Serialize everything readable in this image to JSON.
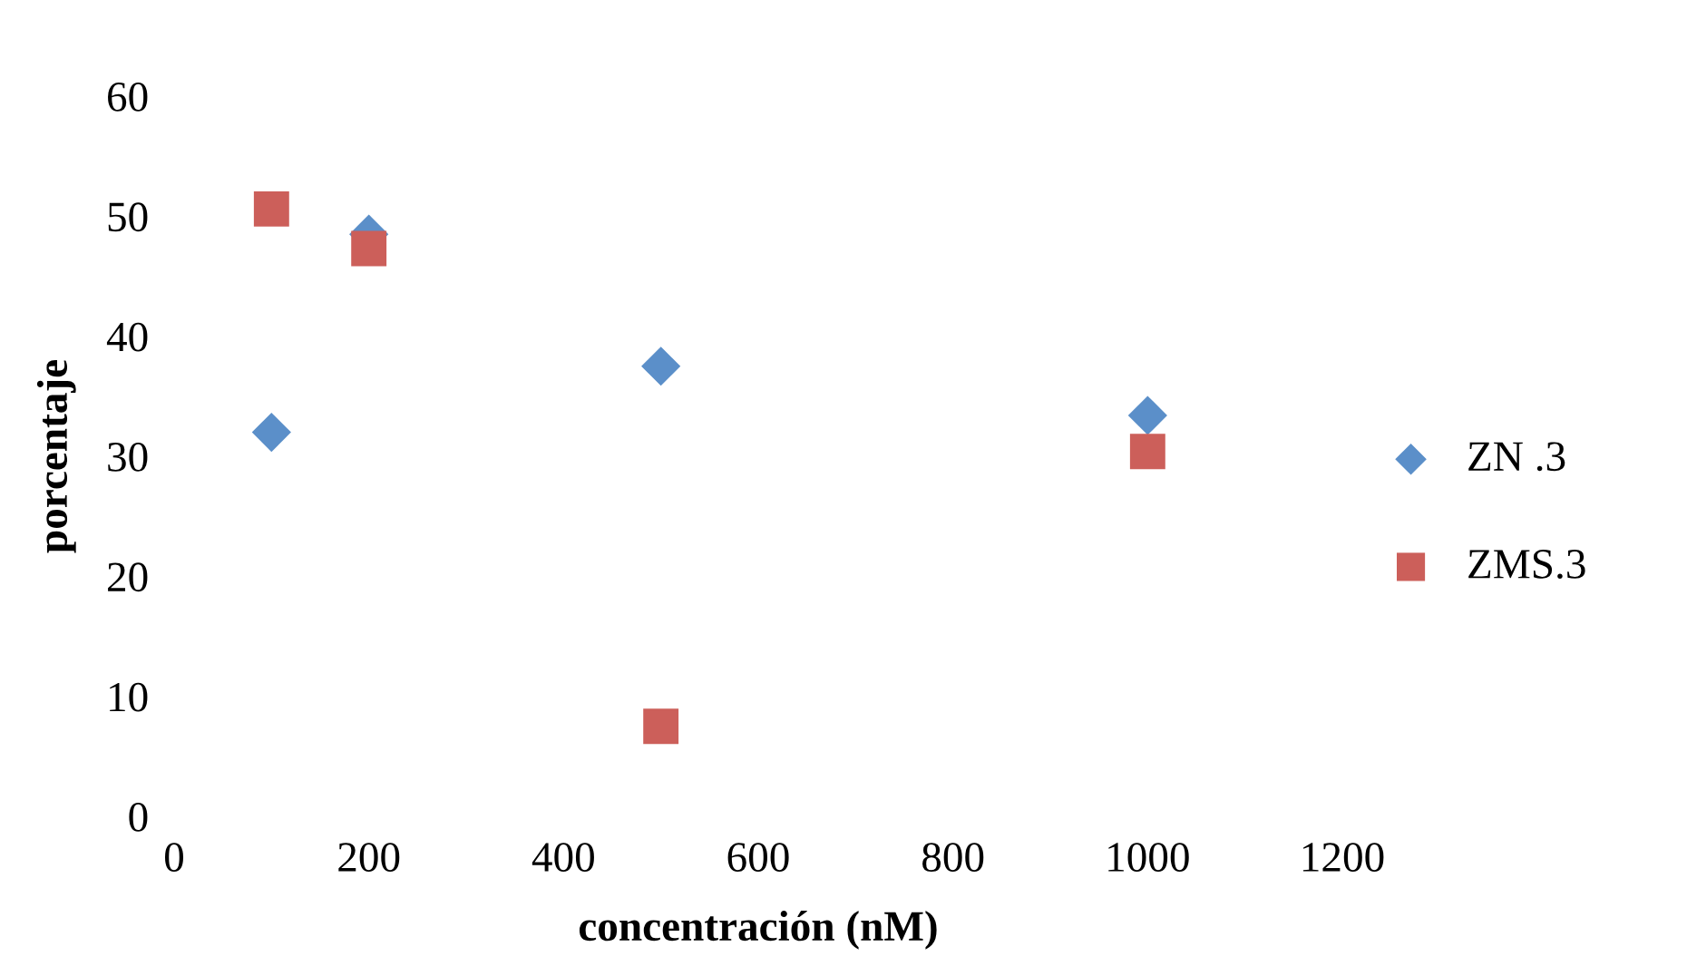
{
  "chart_data": {
    "type": "scatter",
    "xlabel": "concentración (nM)",
    "ylabel": "porcentaje",
    "x": [
      100,
      200,
      500,
      1000
    ],
    "series": [
      {
        "name": "ZN .3",
        "color": "#5b8fc9",
        "marker": "diamond",
        "values": [
          32.0,
          48.5,
          37.5,
          33.4
        ]
      },
      {
        "name": "ZMS.3",
        "color": "#cc5f5a",
        "marker": "square",
        "values": [
          50.6,
          47.3,
          7.5,
          30.4
        ]
      }
    ],
    "xlim": [
      0,
      1200
    ],
    "ylim": [
      0,
      60
    ],
    "xticks": [
      0,
      200,
      400,
      600,
      800,
      1000,
      1200
    ],
    "yticks": [
      0,
      10,
      20,
      30,
      40,
      50,
      60
    ],
    "grid": false,
    "legend": "right"
  }
}
